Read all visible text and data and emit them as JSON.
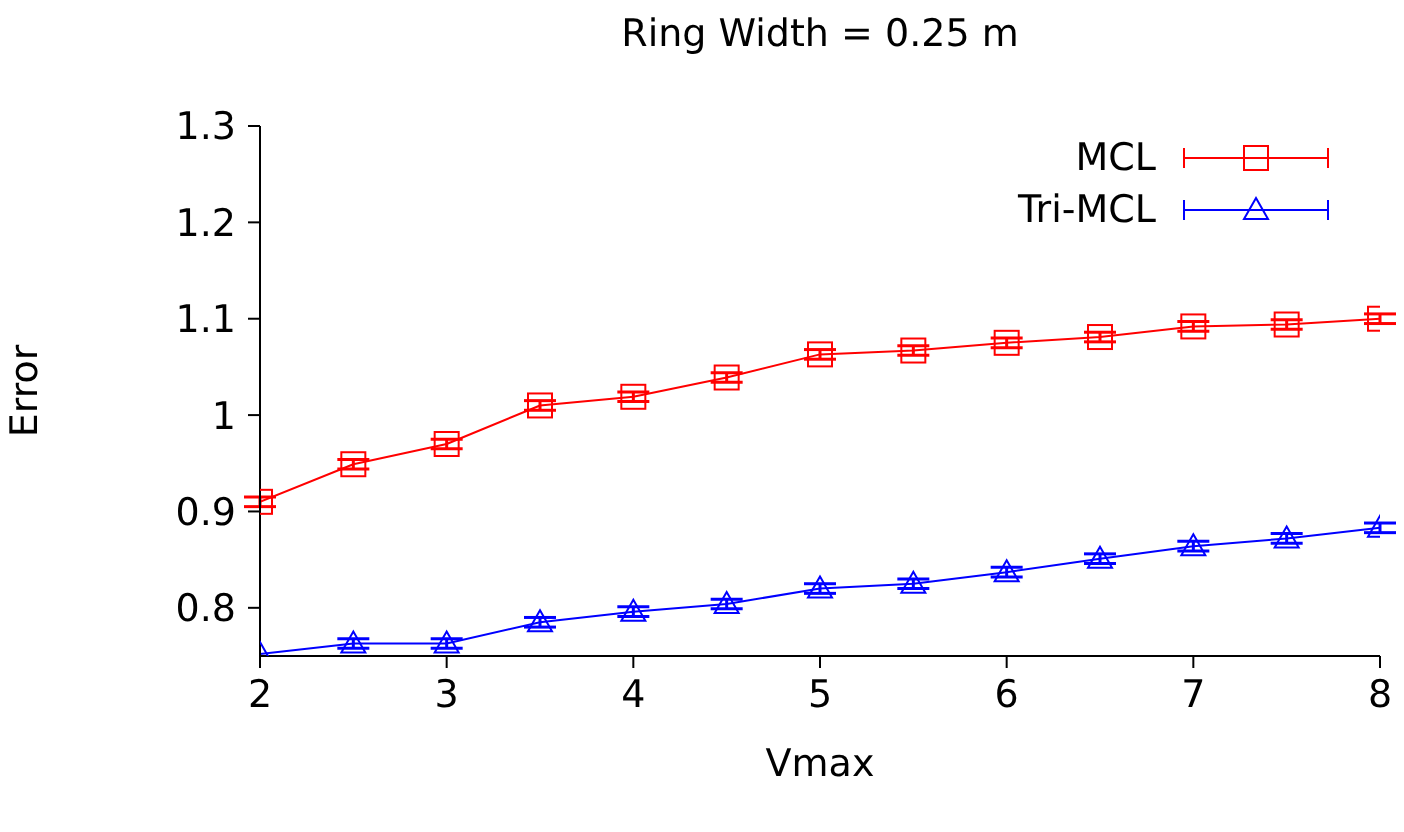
{
  "chart_data": {
    "type": "line",
    "title": "Ring Width = 0.25 m",
    "xlabel": "Vmax",
    "ylabel": "Error",
    "x": [
      2,
      2.5,
      3,
      3.5,
      4,
      4.5,
      5,
      5.5,
      6,
      6.5,
      7,
      7.5,
      8
    ],
    "series": [
      {
        "name": "MCL",
        "color": "#ff0000",
        "marker": "square",
        "values": [
          0.91,
          0.949,
          0.97,
          1.01,
          1.019,
          1.039,
          1.063,
          1.067,
          1.075,
          1.081,
          1.092,
          1.094,
          1.1
        ],
        "errors": [
          0.005,
          0.005,
          0.005,
          0.005,
          0.005,
          0.005,
          0.005,
          0.005,
          0.005,
          0.005,
          0.005,
          0.005,
          0.005
        ]
      },
      {
        "name": "Tri-MCL",
        "color": "#0000ff",
        "marker": "triangle",
        "values": [
          0.752,
          0.763,
          0.763,
          0.785,
          0.796,
          0.804,
          0.82,
          0.825,
          0.837,
          0.851,
          0.864,
          0.872,
          0.883
        ],
        "errors": [
          null,
          0.005,
          0.005,
          0.005,
          0.005,
          0.005,
          0.005,
          0.005,
          0.005,
          0.005,
          0.005,
          0.005,
          0.005
        ]
      }
    ],
    "xlim": [
      2,
      8
    ],
    "xticks": [
      2,
      3,
      4,
      5,
      6,
      7,
      8
    ],
    "ylim": [
      0.75,
      1.3
    ],
    "yticks": [
      0.8,
      0.9,
      1,
      1.1,
      1.2,
      1.3
    ],
    "grid": false,
    "legend": "top right",
    "line_style": "solid"
  }
}
